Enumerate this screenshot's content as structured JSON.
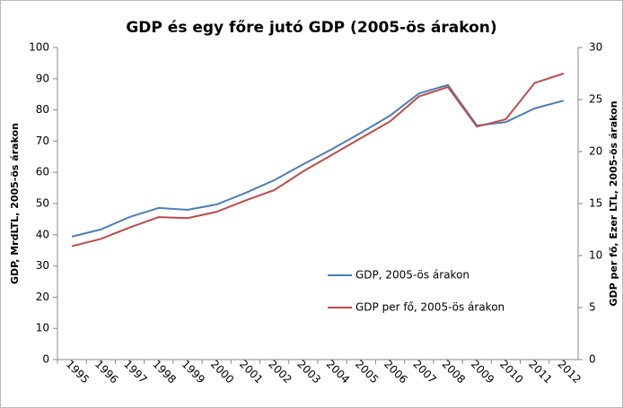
{
  "chart_data": {
    "type": "line",
    "title": "GDP és egy főre jutó GDP (2005-ös árakon)",
    "y_label": "GDP, MrdLTL, 2005-ös árakon",
    "y2_label": "GDP per fő, Ezer LTL, 2005-ös árakon",
    "categories": [
      "1995",
      "1996",
      "1997",
      "1998",
      "1999",
      "2000",
      "2001",
      "2002",
      "2003",
      "2004",
      "2005",
      "2006",
      "2007",
      "2008",
      "2009",
      "2010",
      "2011",
      "2012"
    ],
    "series": [
      {
        "name": "GDP, 2005-ös árakon",
        "color": "#4a7ebb",
        "values": [
          39.4,
          41.7,
          45.7,
          48.6,
          48.0,
          49.7,
          53.4,
          57.5,
          62.6,
          67.5,
          72.7,
          78.2,
          85.3,
          88.0,
          75.0,
          76.1,
          80.5,
          83.0
        ]
      },
      {
        "name": "GDP per fő, 2005-ös árakon",
        "color": "#be4b48",
        "axis": "y2",
        "values": [
          10.9,
          11.6,
          12.7,
          13.7,
          13.6,
          14.2,
          15.3,
          16.3,
          18.1,
          19.7,
          21.3,
          22.9,
          25.3,
          26.2,
          22.4,
          23.1,
          26.6,
          27.5
        ]
      }
    ],
    "ylim": [
      0,
      100
    ],
    "yticks": [
      0,
      10,
      20,
      30,
      40,
      50,
      60,
      70,
      80,
      90,
      100
    ],
    "y2lim": [
      0,
      30
    ],
    "y2ticks": [
      0,
      5,
      10,
      15,
      20,
      25,
      30
    ]
  }
}
